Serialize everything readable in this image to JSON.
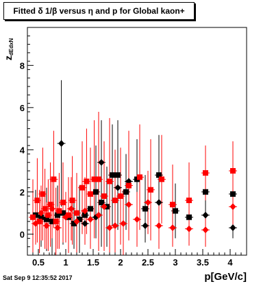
{
  "title": "Fitted δ 1/β versus η and p for Global kaon+",
  "xlabel": "p[GeV/c]",
  "ylabel_main": "z",
  "ylabel_sub": "dEdxN",
  "timestamp": "Sat Sep  9 12:35:52 2017",
  "colors": {
    "black_series": "#000000",
    "red_series": "#ff0000"
  },
  "chart_data": {
    "type": "scatter",
    "xlim": [
      0.3,
      4.3
    ],
    "ylim": [
      -1,
      9.8
    ],
    "xticks": [
      0.5,
      1,
      1.5,
      2,
      2.5,
      3,
      3.5,
      4
    ],
    "xtick_labels": [
      "0.5",
      "1",
      "1.5",
      "2",
      "2.5",
      "3",
      "3.5",
      "4"
    ],
    "yticks": [
      0,
      2,
      4,
      6,
      8
    ],
    "ytick_labels": [
      "0",
      "2",
      "4",
      "6",
      "8"
    ],
    "series": [
      {
        "marker": "square",
        "color": "#000000",
        "points": [
          {
            "x": 0.45,
            "y": 0.9,
            "ey": 1.2
          },
          {
            "x": 0.55,
            "y": 0.8,
            "ey": 1.4
          },
          {
            "x": 0.65,
            "y": 0.7,
            "ey": 1.5
          },
          {
            "x": 0.75,
            "y": 0.6,
            "ey": 1.6
          },
          {
            "x": 0.85,
            "y": 0.9,
            "ey": 1.4
          },
          {
            "x": 0.95,
            "y": 1.0,
            "ey": 1.5
          },
          {
            "x": 1.05,
            "y": 0.8,
            "ey": 1.3
          },
          {
            "x": 1.15,
            "y": 0.5,
            "ey": 1.2
          },
          {
            "x": 1.25,
            "y": 0.7,
            "ey": 1.6
          },
          {
            "x": 1.35,
            "y": 0.9,
            "ey": 1.4
          },
          {
            "x": 1.45,
            "y": 1.2,
            "ey": 1.8
          },
          {
            "x": 1.55,
            "y": 2.0,
            "ey": 2.2
          },
          {
            "x": 1.65,
            "y": 1.5,
            "ey": 2.1
          },
          {
            "x": 1.75,
            "y": 1.3,
            "ey": 1.9
          },
          {
            "x": 1.85,
            "y": 2.8,
            "ey": 2.4
          },
          {
            "x": 1.95,
            "y": 2.8,
            "ey": 2.6
          },
          {
            "x": 2.1,
            "y": 2.0,
            "ey": 1.8
          },
          {
            "x": 2.3,
            "y": 2.6,
            "ey": 1.9
          },
          {
            "x": 2.45,
            "y": 1.2,
            "ey": 1.6
          },
          {
            "x": 2.7,
            "y": 2.8,
            "ey": 1.9
          },
          {
            "x": 3.0,
            "y": 1.1,
            "ey": 1.3
          },
          {
            "x": 3.25,
            "y": 0.8,
            "ey": 1.1
          },
          {
            "x": 3.55,
            "y": 2.0,
            "ey": 1.2
          },
          {
            "x": 4.05,
            "y": 1.9,
            "ey": 1.1
          }
        ]
      },
      {
        "marker": "diamond",
        "color": "#000000",
        "points": [
          {
            "x": 0.92,
            "y": 4.3,
            "ey": 3.0
          },
          {
            "x": 1.35,
            "y": 0.5,
            "ey": 0.8
          },
          {
            "x": 1.55,
            "y": 0.8,
            "ey": 1.0
          },
          {
            "x": 1.65,
            "y": 3.4,
            "ey": 2.0
          },
          {
            "x": 1.95,
            "y": 2.2,
            "ey": 1.5
          },
          {
            "x": 2.15,
            "y": 2.5,
            "ey": 1.6
          },
          {
            "x": 2.45,
            "y": 0.4,
            "ey": 0.6
          },
          {
            "x": 2.7,
            "y": 1.5,
            "ey": 0.8
          },
          {
            "x": 3.55,
            "y": 0.9,
            "ey": 0.6
          },
          {
            "x": 4.05,
            "y": 0.3,
            "ey": 0.5
          }
        ]
      },
      {
        "marker": "square",
        "color": "#ff0000",
        "points": [
          {
            "x": 0.4,
            "y": 0.8,
            "ey": 1.8
          },
          {
            "x": 0.48,
            "y": 1.6,
            "ey": 2.0
          },
          {
            "x": 0.52,
            "y": 0.6,
            "ey": 1.5
          },
          {
            "x": 0.58,
            "y": 1.9,
            "ey": 2.2
          },
          {
            "x": 0.62,
            "y": 1.2,
            "ey": 1.9
          },
          {
            "x": 0.68,
            "y": 0.9,
            "ey": 1.7
          },
          {
            "x": 0.72,
            "y": 1.4,
            "ey": 2.0
          },
          {
            "x": 0.78,
            "y": 2.6,
            "ey": 2.3
          },
          {
            "x": 0.82,
            "y": 0.6,
            "ey": 1.6
          },
          {
            "x": 0.88,
            "y": 1.1,
            "ey": 1.8
          },
          {
            "x": 0.95,
            "y": 1.5,
            "ey": 1.9
          },
          {
            "x": 1.05,
            "y": 0.9,
            "ey": 1.8
          },
          {
            "x": 1.12,
            "y": 1.6,
            "ey": 2.1
          },
          {
            "x": 1.2,
            "y": 1.0,
            "ey": 1.9
          },
          {
            "x": 1.3,
            "y": 2.2,
            "ey": 2.2
          },
          {
            "x": 1.38,
            "y": 2.5,
            "ey": 2.5
          },
          {
            "x": 1.45,
            "y": 1.9,
            "ey": 2.2
          },
          {
            "x": 1.52,
            "y": 2.6,
            "ey": 2.8
          },
          {
            "x": 1.6,
            "y": 2.6,
            "ey": 3.2
          },
          {
            "x": 1.7,
            "y": 1.8,
            "ey": 2.6
          },
          {
            "x": 1.8,
            "y": 2.5,
            "ey": 3.0
          },
          {
            "x": 1.9,
            "y": 1.6,
            "ey": 2.4
          },
          {
            "x": 2.0,
            "y": 1.8,
            "ey": 2.3
          },
          {
            "x": 2.15,
            "y": 2.3,
            "ey": 2.6
          },
          {
            "x": 2.35,
            "y": 2.7,
            "ey": 2.5
          },
          {
            "x": 2.55,
            "y": 2.1,
            "ey": 2.4
          },
          {
            "x": 2.75,
            "y": 2.6,
            "ey": 2.1
          },
          {
            "x": 2.95,
            "y": 1.4,
            "ey": 1.9
          },
          {
            "x": 3.25,
            "y": 1.6,
            "ey": 1.8
          },
          {
            "x": 3.55,
            "y": 2.9,
            "ey": 1.3
          },
          {
            "x": 4.05,
            "y": 3.0,
            "ey": 1.4
          }
        ]
      },
      {
        "marker": "diamond",
        "color": "#ff0000",
        "points": [
          {
            "x": 0.45,
            "y": 0.5,
            "ey": 1.0
          },
          {
            "x": 0.55,
            "y": 1.0,
            "ey": 1.3
          },
          {
            "x": 0.65,
            "y": 0.4,
            "ey": 1.1
          },
          {
            "x": 0.75,
            "y": 1.2,
            "ey": 1.4
          },
          {
            "x": 0.85,
            "y": 0.3,
            "ey": 1.0
          },
          {
            "x": 1.0,
            "y": 0.8,
            "ey": 1.2
          },
          {
            "x": 1.1,
            "y": 1.2,
            "ey": 1.5
          },
          {
            "x": 1.2,
            "y": 0.6,
            "ey": 1.3
          },
          {
            "x": 1.35,
            "y": 1.1,
            "ey": 1.6
          },
          {
            "x": 1.45,
            "y": 0.7,
            "ey": 1.4
          },
          {
            "x": 1.6,
            "y": 0.9,
            "ey": 1.7
          },
          {
            "x": 1.7,
            "y": 1.3,
            "ey": 1.9
          },
          {
            "x": 1.8,
            "y": 0.3,
            "ey": 1.2
          },
          {
            "x": 1.9,
            "y": 0.4,
            "ey": 1.5
          },
          {
            "x": 2.05,
            "y": 0.5,
            "ey": 1.6
          },
          {
            "x": 2.15,
            "y": 1.4,
            "ey": 1.7
          },
          {
            "x": 2.3,
            "y": 0.7,
            "ey": 1.3
          },
          {
            "x": 2.5,
            "y": 1.5,
            "ey": 1.5
          },
          {
            "x": 2.7,
            "y": 0.4,
            "ey": 1.1
          },
          {
            "x": 2.95,
            "y": 0.3,
            "ey": 0.9
          },
          {
            "x": 3.25,
            "y": 0.25,
            "ey": 0.8
          },
          {
            "x": 3.55,
            "y": 0.2,
            "ey": 0.8
          },
          {
            "x": 4.05,
            "y": 1.3,
            "ey": 0.9
          }
        ]
      }
    ]
  }
}
